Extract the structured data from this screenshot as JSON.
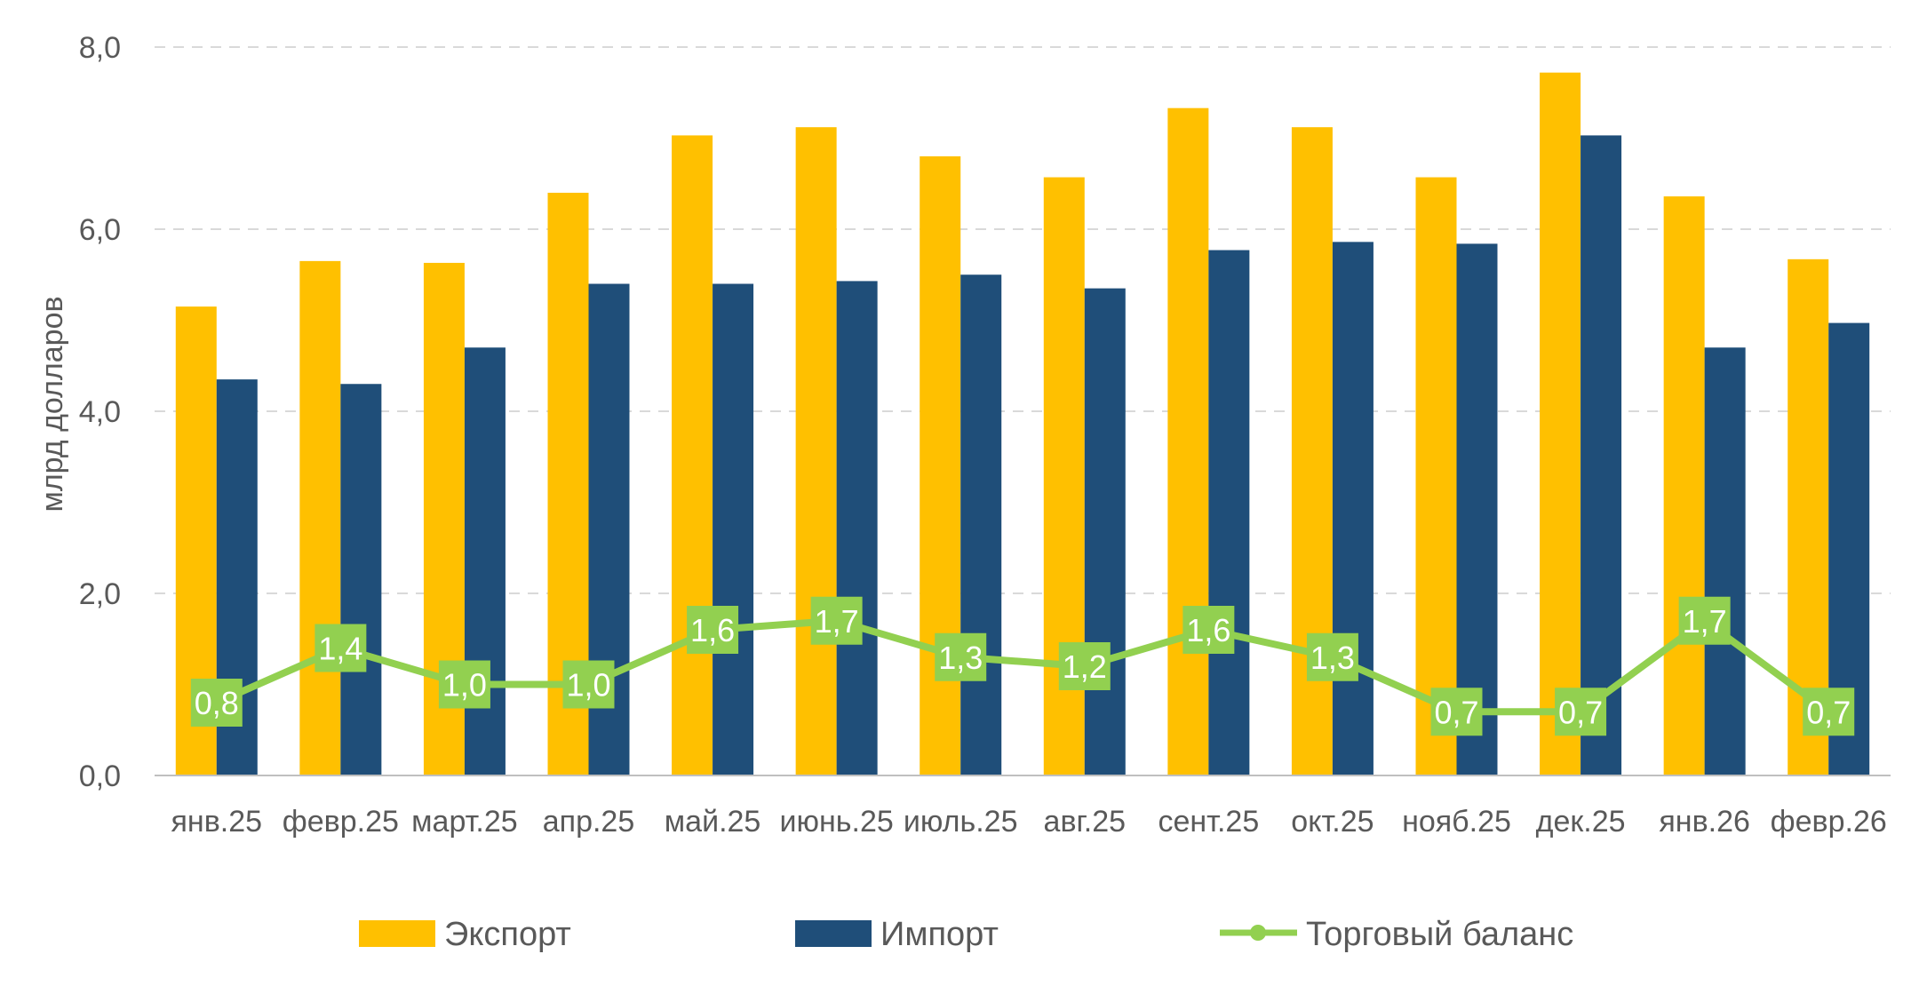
{
  "chart_data": {
    "type": "bar",
    "title": "",
    "xlabel": "",
    "ylabel": "млрд долларов",
    "ylim": [
      0,
      8
    ],
    "yticks": [
      "0,0",
      "2,0",
      "4,0",
      "6,0",
      "8,0"
    ],
    "ytick_values": [
      0,
      2,
      4,
      6,
      8
    ],
    "grid": true,
    "legend_position": "bottom",
    "categories": [
      "янв.25",
      "февр.25",
      "март.25",
      "апр.25",
      "май.25",
      "июнь.25",
      "июль.25",
      "авг.25",
      "сент.25",
      "окт.25",
      "нояб.25",
      "дек.25",
      "янв.26",
      "февр.26"
    ],
    "series": [
      {
        "name": "Экспорт",
        "kind": "bar",
        "color": "#FFC000",
        "values": [
          5.15,
          5.65,
          5.63,
          6.4,
          7.03,
          7.12,
          6.8,
          6.57,
          7.33,
          7.12,
          6.57,
          7.72,
          6.36,
          5.67
        ]
      },
      {
        "name": "Импорт",
        "kind": "bar",
        "color": "#1F4E79",
        "values": [
          4.35,
          4.3,
          4.7,
          5.4,
          5.4,
          5.43,
          5.5,
          5.35,
          5.77,
          5.86,
          5.84,
          7.03,
          4.7,
          4.97
        ]
      },
      {
        "name": "Торговый баланс",
        "kind": "line",
        "color": "#92D050",
        "values": [
          0.8,
          1.4,
          1.0,
          1.0,
          1.6,
          1.7,
          1.3,
          1.2,
          1.6,
          1.3,
          0.7,
          0.7,
          1.7,
          0.7
        ],
        "labels": [
          "0,8",
          "1,4",
          "1,0",
          "1,0",
          "1,6",
          "1,7",
          "1,3",
          "1,2",
          "1,6",
          "1,3",
          "0,7",
          "0,7",
          "1,7",
          "0,7"
        ]
      }
    ]
  }
}
